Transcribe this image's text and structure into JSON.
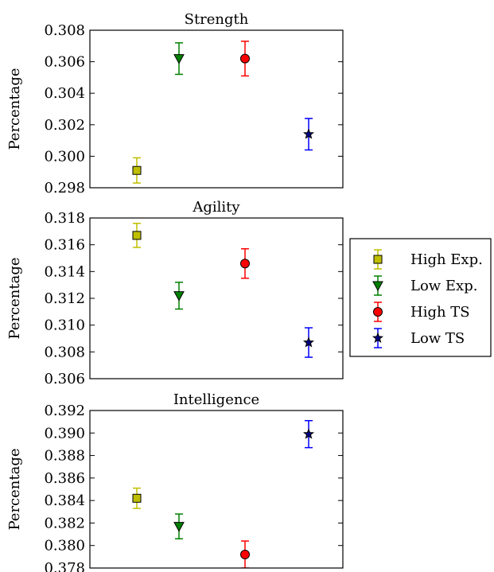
{
  "legend": {
    "position": "right",
    "entries": [
      {
        "label": "High Exp.",
        "color": "#bfbf00",
        "marker": "square"
      },
      {
        "label": "Low Exp.",
        "color": "#008000",
        "marker": "triangle-down"
      },
      {
        "label": "High TS",
        "color": "#ff0000",
        "marker": "circle"
      },
      {
        "label": "Low TS",
        "color": "#0000ff",
        "marker": "star"
      }
    ]
  },
  "chart_data": [
    {
      "type": "scatter",
      "title": "Strength",
      "ylabel": "Percentage",
      "ylim": [
        0.298,
        0.308
      ],
      "yticks": [
        "0.298",
        "0.300",
        "0.302",
        "0.304",
        "0.306",
        "0.308"
      ],
      "grid": false,
      "series": [
        {
          "name": "High Exp.",
          "x": 1,
          "y": 0.2991,
          "err": 0.0008
        },
        {
          "name": "Low Exp.",
          "x": 2,
          "y": 0.3062,
          "err": 0.001
        },
        {
          "name": "High TS",
          "x": 3,
          "y": 0.3062,
          "err": 0.0011
        },
        {
          "name": "Low TS",
          "x": 4,
          "y": 0.3014,
          "err": 0.001
        }
      ]
    },
    {
      "type": "scatter",
      "title": "Agility",
      "ylabel": "Percentage",
      "ylim": [
        0.306,
        0.318
      ],
      "yticks": [
        "0.306",
        "0.308",
        "0.310",
        "0.312",
        "0.314",
        "0.316",
        "0.318"
      ],
      "grid": false,
      "series": [
        {
          "name": "High Exp.",
          "x": 1,
          "y": 0.3167,
          "err": 0.0009
        },
        {
          "name": "Low Exp.",
          "x": 2,
          "y": 0.3122,
          "err": 0.001
        },
        {
          "name": "High TS",
          "x": 3,
          "y": 0.3146,
          "err": 0.0011
        },
        {
          "name": "Low TS",
          "x": 4,
          "y": 0.3087,
          "err": 0.0011
        }
      ]
    },
    {
      "type": "scatter",
      "title": "Intelligence",
      "ylabel": "Percentage",
      "ylim": [
        0.378,
        0.392
      ],
      "yticks": [
        "0.378",
        "0.380",
        "0.382",
        "0.384",
        "0.386",
        "0.388",
        "0.390",
        "0.392"
      ],
      "grid": false,
      "series": [
        {
          "name": "High Exp.",
          "x": 1,
          "y": 0.3842,
          "err": 0.0009
        },
        {
          "name": "Low Exp.",
          "x": 2,
          "y": 0.3817,
          "err": 0.0011
        },
        {
          "name": "High TS",
          "x": 3,
          "y": 0.3792,
          "err": 0.0012
        },
        {
          "name": "Low TS",
          "x": 4,
          "y": 0.3899,
          "err": 0.0012
        }
      ]
    }
  ]
}
